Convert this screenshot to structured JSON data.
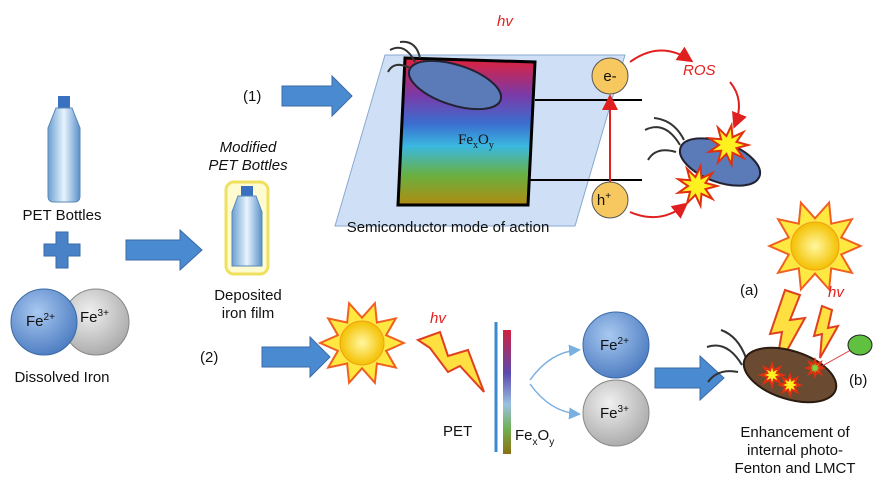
{
  "left": {
    "bottle_label": "PET Bottles",
    "iron": [
      {
        "base": "Fe",
        "sup": "2+"
      },
      {
        "base": "Fe",
        "sup": "3+"
      }
    ],
    "iron_label": "Dissolved Iron"
  },
  "modified": {
    "title": [
      "Modified",
      "PET Bottles"
    ],
    "caption": [
      "Deposited",
      "iron film"
    ]
  },
  "path1": {
    "label": "(1)",
    "hv": "hv",
    "oxide": {
      "fe": "Fe",
      "x": "x",
      "o": "O",
      "y": "y"
    },
    "electron": "e-",
    "hole": {
      "base": "h",
      "sup": "+"
    },
    "ros": "ROS",
    "caption": "Semiconductor mode of action"
  },
  "path2": {
    "label": "(2)",
    "hv": "hv",
    "pet": "PET",
    "oxide": {
      "fe": "Fe",
      "x": "x",
      "o": "O",
      "y": "y"
    },
    "iron": [
      {
        "base": "Fe",
        "sup": "2+"
      },
      {
        "base": "Fe",
        "sup": "3+"
      }
    ],
    "a": "(a)",
    "b": "(b)",
    "hv_right": "hv",
    "caption": [
      "Enhancement of",
      "internal photo-",
      "Fenton and LMCT"
    ]
  }
}
